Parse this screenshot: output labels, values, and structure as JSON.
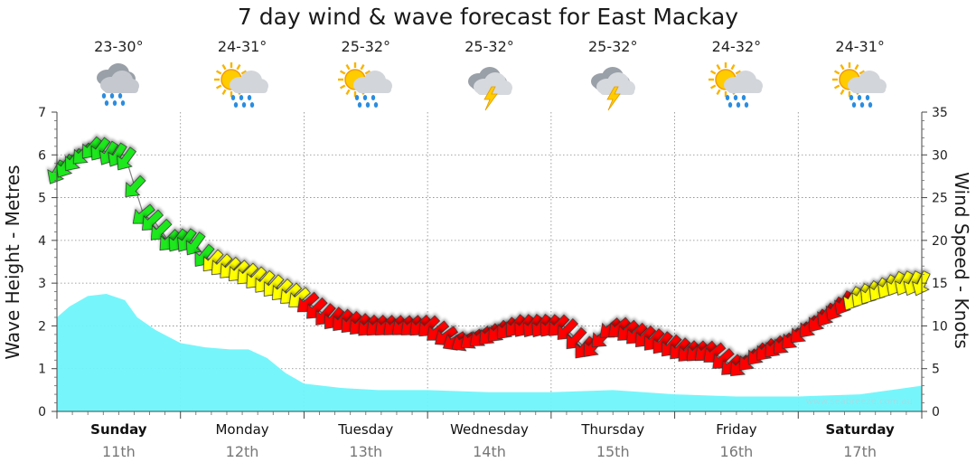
{
  "chart_data": {
    "type": "area",
    "title": "7 day wind & wave forecast for East Mackay",
    "ylabel": "Wave Height - Metres",
    "y2label": "Wind Speed - Knots",
    "ylim": [
      0,
      7
    ],
    "y2lim": [
      0,
      35
    ],
    "yticks": [
      "0",
      "1",
      "2",
      "3",
      "4",
      "5",
      "6",
      "7"
    ],
    "y2ticks": [
      "0",
      "5",
      "10",
      "15",
      "20",
      "25",
      "30",
      "35"
    ],
    "watermark": "www.seabreeze.com.au",
    "days": [
      {
        "name": "Sunday",
        "date": "11th",
        "temp": "23-30°",
        "icon": "rain-cloud-icon",
        "bold": true
      },
      {
        "name": "Monday",
        "date": "12th",
        "temp": "24-31°",
        "icon": "sun-rain-icon",
        "bold": false
      },
      {
        "name": "Tuesday",
        "date": "13th",
        "temp": "25-32°",
        "icon": "sun-rain-icon",
        "bold": false
      },
      {
        "name": "Wednesday",
        "date": "14th",
        "temp": "25-32°",
        "icon": "storm-icon",
        "bold": false
      },
      {
        "name": "Thursday",
        "date": "15th",
        "temp": "25-32°",
        "icon": "storm-icon",
        "bold": false
      },
      {
        "name": "Friday",
        "date": "16th",
        "temp": "24-32°",
        "icon": "sun-rain-icon",
        "bold": false
      },
      {
        "name": "Saturday",
        "date": "17th",
        "temp": "24-31°",
        "icon": "sun-rain-icon",
        "bold": true
      }
    ],
    "wave_series": {
      "name": "Wave height",
      "color": "#6ff5fb",
      "day_offset": [
        0.0,
        0.1,
        0.25,
        0.4,
        0.55,
        0.65,
        0.8,
        1.0,
        1.2,
        1.4,
        1.55,
        1.7,
        1.85,
        2.0,
        2.3,
        2.6,
        3.0,
        3.5,
        4.0,
        4.5,
        5.0,
        5.5,
        6.0,
        6.5,
        7.0
      ],
      "values": [
        2.2,
        2.45,
        2.7,
        2.75,
        2.6,
        2.2,
        1.9,
        1.6,
        1.5,
        1.45,
        1.45,
        1.25,
        0.9,
        0.65,
        0.55,
        0.5,
        0.5,
        0.45,
        0.45,
        0.5,
        0.4,
        0.35,
        0.35,
        0.4,
        0.6
      ]
    },
    "wind_series": {
      "name": "Wind speed",
      "colors": {
        "strong": "#1ee81e",
        "moderate": "#ffff00",
        "light": "#ff0000"
      },
      "day_offset": [
        0.0,
        0.1,
        0.2,
        0.3,
        0.45,
        0.55,
        0.7,
        0.8,
        0.9,
        1.0,
        1.1,
        1.2,
        1.35,
        1.55,
        1.7,
        1.85,
        2.0,
        2.2,
        2.5,
        2.8,
        3.0,
        3.25,
        3.5,
        3.7,
        3.9,
        4.1,
        4.3,
        4.5,
        4.7,
        4.9,
        5.1,
        5.3,
        5.5,
        5.7,
        5.9,
        6.0,
        6.2,
        6.4,
        6.6,
        6.8,
        7.0
      ],
      "values": [
        28,
        29,
        30,
        31,
        30,
        30,
        23,
        22,
        20,
        20,
        20,
        18,
        17,
        16,
        15,
        14,
        13,
        11,
        10,
        10,
        10,
        8,
        9,
        10,
        10,
        10,
        7,
        10,
        9,
        8,
        7,
        7,
        5,
        7,
        8,
        9,
        11,
        13,
        14,
        15,
        15
      ],
      "direction_deg": [
        210,
        215,
        225,
        220,
        210,
        215,
        230,
        225,
        225,
        215,
        215,
        220,
        225,
        225,
        220,
        225,
        230,
        220,
        225,
        230,
        225,
        240,
        225,
        220,
        215,
        225,
        220,
        230,
        225,
        220,
        225,
        230,
        225,
        220,
        225,
        225,
        215,
        210,
        215,
        210,
        205
      ]
    }
  }
}
